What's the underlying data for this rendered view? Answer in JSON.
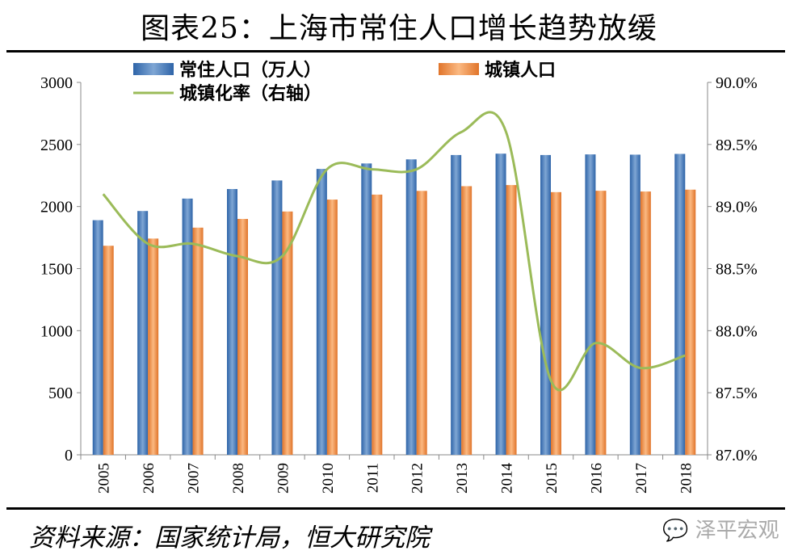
{
  "title": "图表25：上海市常住人口增长趋势放缓",
  "source": "资料来源：国家统计局，恒大研究院",
  "watermark": "泽平宏观",
  "chart_data": {
    "type": "bar+line",
    "title": "图表25：上海市常住人口增长趋势放缓",
    "categories": [
      "2005",
      "2006",
      "2007",
      "2008",
      "2009",
      "2010",
      "2011",
      "2012",
      "2013",
      "2014",
      "2015",
      "2016",
      "2017",
      "2018"
    ],
    "series": [
      {
        "name": "常住人口（万人）",
        "type": "bar",
        "axis": "left",
        "color": "#4f81bd",
        "values": [
          1890,
          1964,
          2064,
          2141,
          2210,
          2303,
          2347,
          2380,
          2415,
          2426,
          2415,
          2420,
          2418,
          2424
        ]
      },
      {
        "name": "城镇人口",
        "type": "bar",
        "axis": "left",
        "color": "#f79646",
        "values": [
          1684,
          1742,
          1830,
          1900,
          1960,
          2056,
          2096,
          2126,
          2164,
          2173,
          2116,
          2127,
          2121,
          2136
        ]
      },
      {
        "name": "城镇化率（右轴）",
        "type": "line",
        "axis": "right",
        "color": "#9bbb59",
        "values": [
          89.1,
          88.7,
          88.7,
          88.6,
          88.6,
          89.3,
          89.3,
          89.3,
          89.6,
          89.6,
          87.6,
          87.9,
          87.7,
          87.8
        ]
      }
    ],
    "left_axis": {
      "min": 0,
      "max": 3000,
      "ticks": [
        "0",
        "500",
        "1000",
        "1500",
        "2000",
        "2500",
        "3000"
      ]
    },
    "right_axis": {
      "min": 87.0,
      "max": 90.0,
      "ticks": [
        "87.0%",
        "87.5%",
        "88.0%",
        "88.5%",
        "89.0%",
        "89.5%",
        "90.0%"
      ]
    },
    "grid": false,
    "legend": "top"
  }
}
